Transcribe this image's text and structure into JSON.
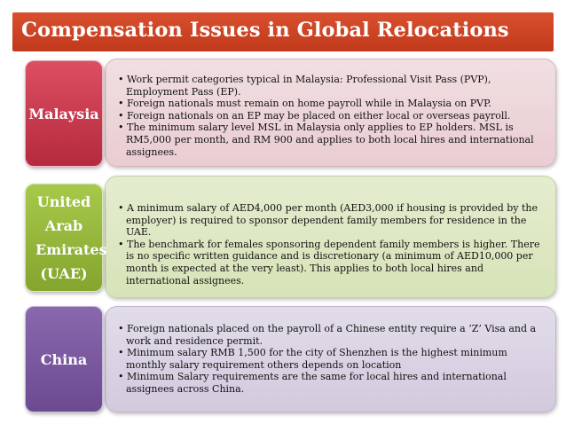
{
  "title": "Compensation Issues in Global Relocations",
  "colors": {
    "title_bar": "#c93f22",
    "malaysia_label": "#c8374b",
    "uae_label": "#97b83b",
    "china_label": "#7b58a0",
    "malaysia_panel": "#edd6da",
    "uae_panel": "#dde8c3",
    "china_panel": "#dbd3e4"
  },
  "sections": [
    {
      "label": "Malaysia",
      "bullets": [
        "Work permit categories  typical in Malaysia: Professional Visit Pass (PVP), Employment Pass (EP).",
        "Foreign nationals must remain on home payroll while in Malaysia on PVP.",
        "Foreign nationals on an EP may be placed on either local or overseas payroll.",
        "The minimum salary level MSL in Malaysia only applies to EP holders. MSL is RM5,000 per month, and  RM 900 and applies to both local hires and international assignees."
      ]
    },
    {
      "label": "United Arab Emirates (UAE)",
      "bullets": [
        "A minimum salary of AED4,000 per month (AED3,000 if housing is provided by the employer) is required to sponsor dependent family members for residence in the UAE.",
        "The benchmark for females sponsoring dependent family members is higher. There is no specific written guidance and is discretionary (a minimum of AED10,000 per month is expected at the very least). This applies to both local hires and international assignees."
      ]
    },
    {
      "label": "China",
      "bullets": [
        "Foreign nationals placed on the payroll of a Chinese entity require a ‘Z’ Visa and a work and residence permit.",
        "Minimum salary RMB 1,500 for the city of Shenzhen is the highest minimum monthly salary requirement others depends on location",
        "Minimum Salary requirements are the same for local hires and international assignees across China."
      ]
    }
  ]
}
